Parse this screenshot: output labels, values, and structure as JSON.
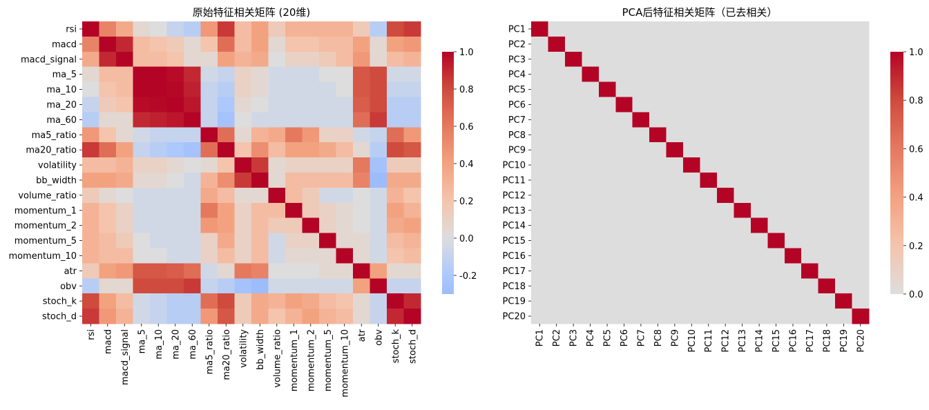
{
  "chart_data": [
    {
      "type": "heatmap",
      "title": "原始特征相关矩阵 (20维)",
      "colormap": "coolwarm",
      "colormap_center": 0,
      "vmin": -0.3,
      "vmax": 1.0,
      "colorbar_ticks": [
        "-0.2",
        "0.0",
        "0.2",
        "0.4",
        "0.6",
        "0.8",
        "1.0"
      ],
      "colorbar_tick_values": [
        -0.2,
        0.0,
        0.2,
        0.4,
        0.6,
        0.8,
        1.0
      ],
      "labels": [
        "rsi",
        "macd",
        "macd_signal",
        "ma_5",
        "ma_10",
        "ma_20",
        "ma_60",
        "ma5_ratio",
        "ma20_ratio",
        "volatility",
        "bb_width",
        "volume_ratio",
        "momentum_1",
        "momentum_2",
        "momentum_5",
        "momentum_10",
        "atr",
        "obv",
        "stoch_k",
        "stoch_d"
      ],
      "matrix": [
        [
          1.0,
          0.55,
          0.35,
          0.05,
          0.0,
          -0.1,
          -0.15,
          0.45,
          0.85,
          0.25,
          0.4,
          0.15,
          0.3,
          0.3,
          0.3,
          0.3,
          0.15,
          -0.15,
          0.8,
          0.85
        ],
        [
          0.55,
          1.0,
          0.9,
          0.25,
          0.2,
          0.15,
          0.05,
          0.2,
          0.65,
          0.25,
          0.4,
          0.05,
          0.2,
          0.2,
          0.25,
          0.25,
          0.4,
          0.05,
          0.4,
          0.45
        ],
        [
          0.35,
          0.9,
          1.0,
          0.25,
          0.25,
          0.2,
          0.05,
          0.05,
          0.4,
          0.3,
          0.35,
          0.0,
          0.1,
          0.1,
          0.15,
          0.25,
          0.45,
          0.05,
          0.25,
          0.3
        ],
        [
          0.05,
          0.25,
          0.25,
          1.0,
          1.0,
          0.98,
          0.9,
          -0.05,
          -0.1,
          0.1,
          0.05,
          -0.05,
          -0.05,
          -0.05,
          0.0,
          0.0,
          0.75,
          0.8,
          -0.05,
          -0.05
        ],
        [
          0.0,
          0.2,
          0.25,
          1.0,
          1.0,
          0.99,
          0.92,
          -0.1,
          -0.15,
          0.1,
          0.05,
          -0.05,
          -0.05,
          -0.05,
          -0.05,
          0.0,
          0.75,
          0.8,
          -0.1,
          -0.1
        ],
        [
          -0.1,
          0.15,
          0.2,
          0.98,
          0.99,
          1.0,
          0.95,
          -0.1,
          -0.2,
          0.05,
          0.0,
          -0.05,
          -0.05,
          -0.05,
          -0.05,
          -0.05,
          0.72,
          0.8,
          -0.15,
          -0.15
        ],
        [
          -0.15,
          0.05,
          0.05,
          0.9,
          0.92,
          0.95,
          1.0,
          -0.1,
          -0.25,
          0.0,
          -0.05,
          -0.05,
          -0.05,
          -0.05,
          -0.05,
          -0.05,
          0.65,
          0.85,
          -0.15,
          -0.15
        ],
        [
          0.45,
          0.2,
          0.05,
          -0.05,
          -0.1,
          -0.1,
          -0.1,
          1.0,
          0.65,
          0.05,
          0.3,
          0.35,
          0.6,
          0.45,
          0.1,
          0.1,
          -0.05,
          -0.1,
          0.65,
          0.45
        ],
        [
          0.85,
          0.65,
          0.4,
          -0.1,
          -0.15,
          -0.2,
          -0.25,
          0.65,
          1.0,
          0.2,
          0.5,
          0.25,
          0.4,
          0.4,
          0.35,
          0.25,
          0.05,
          -0.15,
          0.8,
          0.75
        ],
        [
          0.25,
          0.25,
          0.3,
          0.1,
          0.1,
          0.05,
          0.0,
          0.05,
          0.2,
          1.0,
          0.85,
          0.05,
          0.1,
          0.1,
          0.1,
          0.1,
          0.6,
          -0.25,
          0.15,
          0.15
        ],
        [
          0.4,
          0.4,
          0.35,
          0.05,
          0.05,
          0.0,
          -0.05,
          0.3,
          0.5,
          0.85,
          1.0,
          0.05,
          0.25,
          0.25,
          0.25,
          0.25,
          0.55,
          -0.3,
          0.35,
          0.35
        ],
        [
          0.15,
          0.05,
          0.0,
          -0.05,
          -0.05,
          -0.05,
          -0.05,
          0.35,
          0.25,
          0.05,
          0.05,
          1.0,
          0.25,
          0.15,
          -0.05,
          -0.05,
          0.0,
          -0.05,
          0.3,
          0.2
        ],
        [
          0.3,
          0.2,
          0.1,
          -0.05,
          -0.05,
          -0.05,
          -0.05,
          0.6,
          0.4,
          0.1,
          0.25,
          0.25,
          1.0,
          0.15,
          0.1,
          0.05,
          0.0,
          -0.05,
          0.4,
          0.3
        ],
        [
          0.3,
          0.2,
          0.1,
          -0.05,
          -0.05,
          -0.05,
          -0.05,
          0.45,
          0.4,
          0.1,
          0.25,
          0.15,
          0.15,
          1.0,
          0.1,
          0.05,
          0.0,
          -0.05,
          0.35,
          0.4
        ],
        [
          0.3,
          0.25,
          0.15,
          0.0,
          -0.05,
          -0.05,
          -0.05,
          0.1,
          0.35,
          0.1,
          0.25,
          -0.05,
          0.1,
          0.1,
          1.0,
          0.05,
          0.05,
          -0.05,
          0.25,
          0.3
        ],
        [
          0.3,
          0.25,
          0.25,
          0.0,
          0.0,
          -0.05,
          -0.05,
          0.1,
          0.25,
          0.1,
          0.25,
          -0.05,
          0.05,
          0.05,
          0.05,
          1.0,
          0.05,
          -0.05,
          0.2,
          0.25
        ],
        [
          0.15,
          0.4,
          0.45,
          0.75,
          0.75,
          0.72,
          0.65,
          -0.05,
          0.05,
          0.6,
          0.55,
          0.0,
          0.0,
          0.0,
          0.05,
          0.05,
          1.0,
          0.4,
          0.05,
          0.05
        ],
        [
          -0.15,
          0.05,
          0.05,
          0.8,
          0.8,
          0.8,
          0.85,
          -0.1,
          -0.15,
          -0.25,
          -0.3,
          -0.05,
          -0.05,
          -0.05,
          -0.05,
          -0.05,
          0.4,
          1.0,
          -0.1,
          -0.1
        ],
        [
          0.8,
          0.4,
          0.25,
          -0.05,
          -0.1,
          -0.15,
          -0.15,
          0.65,
          0.8,
          0.15,
          0.35,
          0.3,
          0.4,
          0.35,
          0.25,
          0.2,
          0.05,
          -0.1,
          1.0,
          0.9
        ],
        [
          0.85,
          0.45,
          0.3,
          -0.05,
          -0.1,
          -0.15,
          -0.15,
          0.45,
          0.75,
          0.15,
          0.35,
          0.2,
          0.3,
          0.4,
          0.3,
          0.25,
          0.05,
          -0.1,
          0.9,
          1.0
        ]
      ]
    },
    {
      "type": "heatmap",
      "title": "PCA后特征相关矩阵（已去相关）",
      "colormap": "coolwarm",
      "colormap_center": 0,
      "vmin": 0.0,
      "vmax": 1.0,
      "colorbar_ticks": [
        "0.0",
        "0.2",
        "0.4",
        "0.6",
        "0.8",
        "1.0"
      ],
      "colorbar_tick_values": [
        0.0,
        0.2,
        0.4,
        0.6,
        0.8,
        1.0
      ],
      "labels": [
        "PC1",
        "PC2",
        "PC3",
        "PC4",
        "PC5",
        "PC6",
        "PC7",
        "PC8",
        "PC9",
        "PC10",
        "PC11",
        "PC12",
        "PC13",
        "PC14",
        "PC15",
        "PC16",
        "PC17",
        "PC18",
        "PC19",
        "PC20"
      ],
      "matrix": "identity"
    }
  ]
}
